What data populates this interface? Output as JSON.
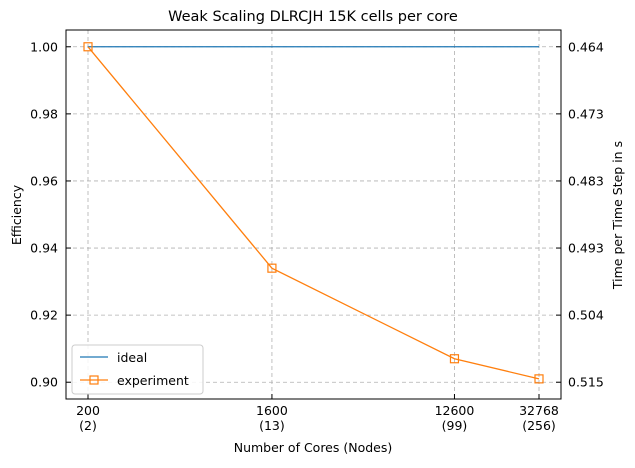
{
  "chart_data": {
    "type": "line",
    "title": "Weak Scaling DLRCJH 15K cells per core",
    "xlabel": "Number of Cores (Nodes)",
    "ylabel": "Efficiency",
    "ylabel_right": "Time per Time Step in s",
    "x_scale": "log2",
    "x_ticks": [
      {
        "value": 200,
        "label": "200",
        "sublabel": "(2)"
      },
      {
        "value": 1600,
        "label": "1600",
        "sublabel": "(13)"
      },
      {
        "value": 12600,
        "label": "12600",
        "sublabel": "(99)"
      },
      {
        "value": 32768,
        "label": "32768",
        "sublabel": "(256)"
      }
    ],
    "xlim": [
      200,
      32768
    ],
    "ylim": [
      0.895,
      1.005
    ],
    "y_ticks": [
      0.9,
      0.92,
      0.94,
      0.96,
      0.98,
      1.0
    ],
    "y_tick_labels": [
      "0.90",
      "0.92",
      "0.94",
      "0.96",
      "0.98",
      "1.00"
    ],
    "y2_ticks": [
      {
        "value": 0.464,
        "label": "0.464"
      },
      {
        "value": 0.473,
        "label": "0.473"
      },
      {
        "value": 0.483,
        "label": "0.483"
      },
      {
        "value": 0.493,
        "label": "0.493"
      },
      {
        "value": 0.504,
        "label": "0.504"
      },
      {
        "value": 0.515,
        "label": "0.515"
      }
    ],
    "grid": true,
    "legend_position": "bottom-left",
    "series": [
      {
        "name": "ideal",
        "color": "#1f77b4",
        "marker": "none",
        "x": [
          200,
          32768
        ],
        "y": [
          1.0,
          1.0
        ]
      },
      {
        "name": "experiment",
        "color": "#ff7f0e",
        "marker": "square",
        "x": [
          200,
          1600,
          12600,
          32768
        ],
        "y": [
          1.0,
          0.934,
          0.907,
          0.901
        ]
      }
    ]
  }
}
